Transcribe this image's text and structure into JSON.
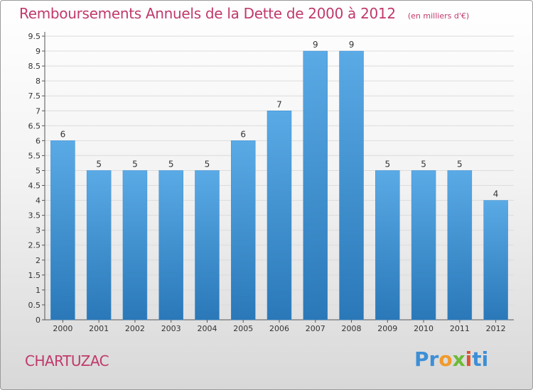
{
  "header": {
    "title": "Remboursements Annuels de la Dette de 2000 à 2012",
    "unit": "(en milliers d'€)"
  },
  "footer": {
    "commune": "CHARTUZAC",
    "logo_text": "Proxiti"
  },
  "colors": {
    "accent": "#c0396b",
    "bar_top": "#5aaae6",
    "bar_bottom": "#2a78b8"
  },
  "chart_data": {
    "type": "bar",
    "categories": [
      "2000",
      "2001",
      "2002",
      "2003",
      "2004",
      "2005",
      "2006",
      "2007",
      "2008",
      "2009",
      "2010",
      "2011",
      "2012"
    ],
    "values": [
      6,
      5,
      5,
      5,
      5,
      6,
      7,
      9,
      9,
      5,
      5,
      5,
      4
    ],
    "yticks": [
      "0",
      "0.5",
      "1",
      "1.5",
      "2",
      "2.5",
      "3",
      "3.5",
      "4",
      "4.5",
      "5",
      "5.5",
      "6",
      "6.5",
      "7",
      "7.5",
      "8",
      "8.5",
      "9",
      "9.5"
    ],
    "ylim": [
      0,
      9.5
    ],
    "grid": true,
    "title": "Remboursements Annuels de la Dette de 2000 à 2012",
    "xlabel": "",
    "ylabel": ""
  }
}
